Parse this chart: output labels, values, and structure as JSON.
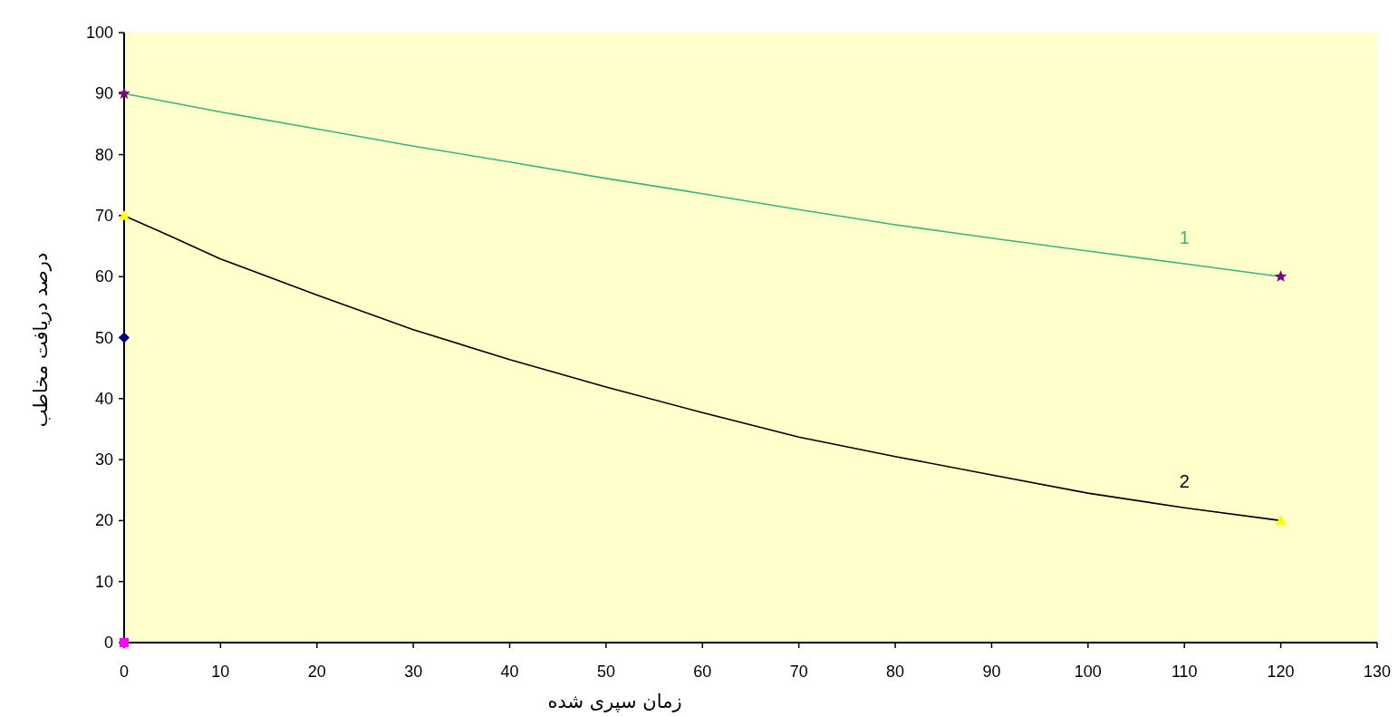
{
  "chart_data": {
    "type": "line",
    "xlabel": "زمان سپری شده",
    "ylabel": "درصد دریافت مخاطب",
    "xlim": [
      0,
      130
    ],
    "ylim": [
      0,
      100
    ],
    "xticks": [
      0,
      10,
      20,
      30,
      40,
      50,
      60,
      70,
      80,
      90,
      100,
      110,
      120,
      130
    ],
    "yticks": [
      0,
      10,
      20,
      30,
      40,
      50,
      60,
      70,
      80,
      90,
      100
    ],
    "grid": false,
    "series": [
      {
        "name": "1",
        "color": "#3cb37a",
        "x": [
          0,
          10,
          20,
          30,
          40,
          50,
          60,
          70,
          80,
          90,
          100,
          110,
          120
        ],
        "values": [
          90,
          87,
          84.2,
          81.4,
          78.8,
          76.1,
          73.6,
          71,
          68.5,
          66.3,
          64.2,
          62.1,
          60
        ]
      },
      {
        "name": "2",
        "color": "#000000",
        "x": [
          0,
          5,
          10,
          20,
          30,
          40,
          50,
          60,
          70,
          80,
          90,
          100,
          110,
          120
        ],
        "values": [
          70,
          66.5,
          62.9,
          57,
          51.3,
          46.4,
          41.9,
          37.7,
          33.7,
          30.5,
          27.5,
          24.5,
          22.1,
          20
        ]
      },
      {
        "type": "scatter",
        "marker": "star",
        "color": "#800080",
        "x": [
          0,
          120
        ],
        "values": [
          90,
          60
        ]
      },
      {
        "type": "scatter",
        "marker": "triangle",
        "color": "#ffff00",
        "x": [
          0,
          120
        ],
        "values": [
          70,
          20
        ]
      },
      {
        "type": "scatter",
        "marker": "diamond",
        "color": "#000080",
        "x": [
          0
        ],
        "values": [
          50
        ]
      },
      {
        "type": "scatter",
        "marker": "square",
        "color": "#ff00ff",
        "x": [
          0
        ],
        "values": [
          0
        ]
      }
    ]
  }
}
